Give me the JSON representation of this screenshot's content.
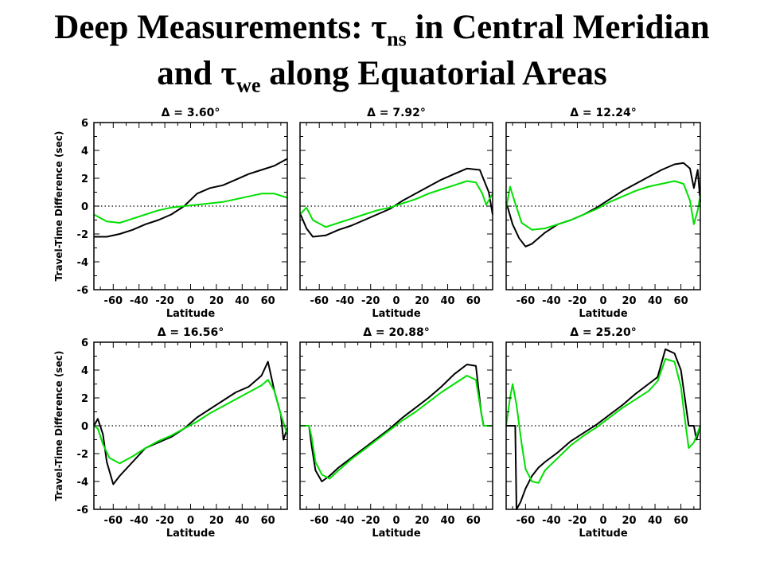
{
  "title": {
    "line1_pre": "Deep Measurements: τ",
    "line1_sub": "ns",
    "line1_post": " in Central Meridian",
    "line2_pre": "and τ",
    "line2_sub": "we",
    "line2_post": " along Equatorial Areas"
  },
  "colors": {
    "series_a": "#000000",
    "series_b": "#00e000",
    "zero_line": "#000000",
    "axes": "#000000"
  },
  "chart_data": [
    {
      "type": "line",
      "title": "Δ = 3.60°",
      "xlabel": "Latitude",
      "ylabel": "Travel-Time Difference (sec)",
      "xlim": [
        -75,
        75
      ],
      "ylim": [
        -6,
        6
      ],
      "xticks": [
        -60,
        -40,
        -20,
        0,
        20,
        40,
        60
      ],
      "yticks": [
        -6,
        -4,
        -2,
        0,
        2,
        4,
        6
      ],
      "zero_line": true,
      "series": [
        {
          "x": [
            -75,
            -65,
            -55,
            -45,
            -35,
            -25,
            -15,
            -5,
            5,
            15,
            25,
            35,
            45,
            55,
            65,
            75
          ],
          "y": [
            -2.2,
            -2.2,
            -2.0,
            -1.7,
            -1.3,
            -1.0,
            -0.6,
            0.0,
            0.9,
            1.3,
            1.5,
            1.9,
            2.3,
            2.6,
            2.9,
            3.4
          ]
        },
        {
          "x": [
            -75,
            -65,
            -55,
            -45,
            -35,
            -25,
            -15,
            -5,
            5,
            15,
            25,
            35,
            45,
            55,
            65,
            75
          ],
          "y": [
            -0.6,
            -1.1,
            -1.2,
            -0.9,
            -0.6,
            -0.3,
            -0.1,
            0.0,
            0.1,
            0.2,
            0.3,
            0.5,
            0.7,
            0.9,
            0.9,
            0.6
          ]
        }
      ]
    },
    {
      "type": "line",
      "title": "Δ = 7.92°",
      "xlabel": "Latitude",
      "ylabel": "Travel-Time Difference (sec)",
      "xlim": [
        -75,
        75
      ],
      "ylim": [
        -6,
        6
      ],
      "xticks": [
        -60,
        -40,
        -20,
        0,
        20,
        40,
        60
      ],
      "yticks": [
        -6,
        -4,
        -2,
        0,
        2,
        4,
        6
      ],
      "zero_line": true,
      "series": [
        {
          "x": [
            -75,
            -70,
            -65,
            -55,
            -45,
            -35,
            -25,
            -15,
            -5,
            5,
            15,
            25,
            35,
            45,
            55,
            65,
            72,
            75
          ],
          "y": [
            -0.5,
            -1.6,
            -2.2,
            -2.1,
            -1.7,
            -1.4,
            -1.0,
            -0.6,
            -0.2,
            0.4,
            0.9,
            1.4,
            1.9,
            2.3,
            2.7,
            2.6,
            1.0,
            -0.6
          ]
        },
        {
          "x": [
            -75,
            -70,
            -65,
            -55,
            -45,
            -35,
            -25,
            -15,
            -5,
            5,
            15,
            25,
            35,
            45,
            55,
            62,
            67,
            70,
            75
          ],
          "y": [
            -0.6,
            -0.1,
            -1.0,
            -1.5,
            -1.2,
            -0.9,
            -0.6,
            -0.3,
            -0.1,
            0.2,
            0.5,
            0.9,
            1.2,
            1.5,
            1.8,
            1.7,
            0.9,
            0.1,
            0.9
          ]
        }
      ]
    },
    {
      "type": "line",
      "title": "Δ = 12.24°",
      "xlabel": "Latitude",
      "ylabel": "Travel-Time Difference (sec)",
      "xlim": [
        -75,
        75
      ],
      "ylim": [
        -6,
        6
      ],
      "xticks": [
        -60,
        -40,
        -20,
        0,
        20,
        40,
        60
      ],
      "yticks": [
        -6,
        -4,
        -2,
        0,
        2,
        4,
        6
      ],
      "zero_line": true,
      "series": [
        {
          "x": [
            -75,
            -70,
            -65,
            -60,
            -55,
            -45,
            -35,
            -25,
            -15,
            -5,
            5,
            15,
            25,
            35,
            45,
            55,
            62,
            67,
            70,
            73,
            75
          ],
          "y": [
            0.3,
            -1.3,
            -2.3,
            -2.9,
            -2.7,
            -1.9,
            -1.3,
            -1.0,
            -0.6,
            -0.1,
            0.5,
            1.1,
            1.6,
            2.1,
            2.6,
            3.0,
            3.1,
            2.7,
            1.3,
            2.6,
            0.3
          ]
        },
        {
          "x": [
            -75,
            -72,
            -68,
            -63,
            -55,
            -45,
            -35,
            -25,
            -15,
            -5,
            5,
            15,
            25,
            35,
            45,
            55,
            62,
            67,
            70,
            73,
            75
          ],
          "y": [
            -0.2,
            1.4,
            0.2,
            -1.2,
            -1.7,
            -1.6,
            -1.3,
            -1.0,
            -0.6,
            -0.2,
            0.3,
            0.7,
            1.1,
            1.4,
            1.6,
            1.8,
            1.6,
            0.4,
            -1.3,
            -0.3,
            0.8
          ]
        }
      ]
    },
    {
      "type": "line",
      "title": "Δ = 16.56°",
      "xlabel": "Latitude",
      "ylabel": "Travel-Time Difference (sec)",
      "xlim": [
        -75,
        75
      ],
      "ylim": [
        -6,
        6
      ],
      "xticks": [
        -60,
        -40,
        -20,
        0,
        20,
        40,
        60
      ],
      "yticks": [
        -6,
        -4,
        -2,
        0,
        2,
        4,
        6
      ],
      "zero_line": true,
      "series": [
        {
          "x": [
            -75,
            -72,
            -68,
            -65,
            -60,
            -55,
            -45,
            -35,
            -25,
            -15,
            -5,
            5,
            15,
            25,
            35,
            45,
            55,
            60,
            65,
            70,
            72,
            75
          ],
          "y": [
            0.0,
            0.5,
            -0.6,
            -2.6,
            -4.2,
            -3.6,
            -2.6,
            -1.6,
            -1.2,
            -0.8,
            -0.2,
            0.6,
            1.2,
            1.8,
            2.4,
            2.8,
            3.6,
            4.6,
            2.5,
            0.8,
            -1.0,
            -0.2
          ]
        },
        {
          "x": [
            -75,
            -72,
            -68,
            -63,
            -55,
            -45,
            -35,
            -25,
            -15,
            -5,
            5,
            15,
            25,
            35,
            45,
            55,
            60,
            65,
            70,
            75
          ],
          "y": [
            0.0,
            -0.2,
            -1.3,
            -2.3,
            -2.7,
            -2.2,
            -1.6,
            -1.1,
            -0.7,
            -0.2,
            0.3,
            0.9,
            1.4,
            1.9,
            2.4,
            2.9,
            3.3,
            2.5,
            0.8,
            -0.6
          ]
        }
      ]
    },
    {
      "type": "line",
      "title": "Δ = 20.88°",
      "xlabel": "Latitude",
      "ylabel": "Travel-Time Difference (sec)",
      "xlim": [
        -75,
        75
      ],
      "ylim": [
        -6,
        6
      ],
      "xticks": [
        -60,
        -40,
        -20,
        0,
        20,
        40,
        60
      ],
      "yticks": [
        -6,
        -4,
        -2,
        0,
        2,
        4,
        6
      ],
      "zero_line": true,
      "series": [
        {
          "x": [
            -75,
            -68,
            -66,
            -63,
            -58,
            -52,
            -45,
            -35,
            -25,
            -15,
            -5,
            5,
            15,
            25,
            35,
            45,
            55,
            62,
            66,
            68,
            75
          ],
          "y": [
            0.0,
            0.0,
            -1.4,
            -3.2,
            -4.0,
            -3.6,
            -3.0,
            -2.3,
            -1.6,
            -0.9,
            -0.2,
            0.6,
            1.3,
            2.0,
            2.8,
            3.7,
            4.4,
            4.3,
            1.0,
            0.0,
            0.0
          ]
        },
        {
          "x": [
            -75,
            -68,
            -66,
            -63,
            -58,
            -52,
            -45,
            -35,
            -25,
            -15,
            -5,
            5,
            15,
            25,
            35,
            45,
            55,
            62,
            66,
            68,
            75
          ],
          "y": [
            0.0,
            0.0,
            -0.8,
            -2.6,
            -3.5,
            -3.8,
            -3.2,
            -2.4,
            -1.7,
            -1.0,
            -0.3,
            0.4,
            1.0,
            1.7,
            2.4,
            3.0,
            3.6,
            3.3,
            1.0,
            0.0,
            0.0
          ]
        }
      ]
    },
    {
      "type": "line",
      "title": "Δ = 25.20°",
      "xlabel": "Latitude",
      "ylabel": "Travel-Time Difference (sec)",
      "xlim": [
        -75,
        75
      ],
      "ylim": [
        -6,
        6
      ],
      "xticks": [
        -60,
        -40,
        -20,
        0,
        20,
        40,
        60
      ],
      "yticks": [
        -6,
        -4,
        -2,
        0,
        2,
        4,
        6
      ],
      "zero_line": true,
      "series": [
        {
          "x": [
            -75,
            -68,
            -67,
            -64,
            -60,
            -55,
            -50,
            -45,
            -35,
            -25,
            -15,
            -5,
            5,
            15,
            25,
            35,
            42,
            48,
            55,
            60,
            63,
            66,
            70,
            72,
            75
          ],
          "y": [
            0.0,
            0.0,
            -6.0,
            -5.5,
            -4.5,
            -3.6,
            -3.0,
            -2.6,
            -1.9,
            -1.1,
            -0.5,
            0.1,
            0.8,
            1.5,
            2.3,
            3.0,
            3.5,
            5.5,
            5.2,
            4.0,
            2.0,
            0.0,
            0.0,
            -1.0,
            0.0
          ]
        },
        {
          "x": [
            -75,
            -72,
            -70,
            -67,
            -63,
            -60,
            -55,
            -50,
            -45,
            -35,
            -25,
            -15,
            -5,
            5,
            15,
            25,
            35,
            42,
            48,
            55,
            60,
            63,
            66,
            70,
            75
          ],
          "y": [
            0.0,
            2.0,
            3.0,
            1.5,
            -1.3,
            -3.1,
            -4.0,
            -4.1,
            -3.2,
            -2.3,
            -1.4,
            -0.7,
            -0.1,
            0.6,
            1.3,
            1.9,
            2.5,
            3.2,
            4.8,
            4.6,
            2.8,
            0.5,
            -1.6,
            -1.2,
            0.0
          ]
        }
      ]
    }
  ]
}
